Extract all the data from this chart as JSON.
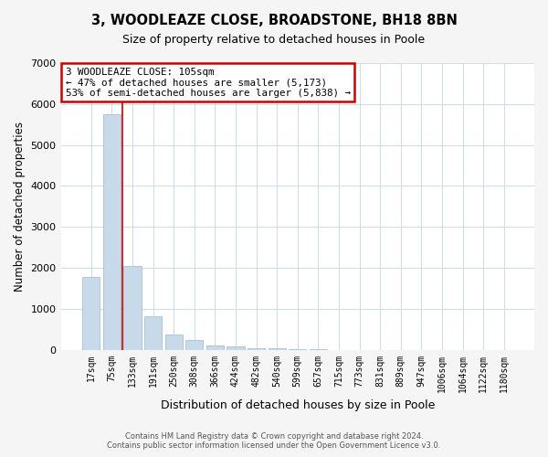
{
  "title": "3, WOODLEAZE CLOSE, BROADSTONE, BH18 8BN",
  "subtitle": "Size of property relative to detached houses in Poole",
  "xlabel": "Distribution of detached houses by size in Poole",
  "ylabel": "Number of detached properties",
  "bar_labels": [
    "17sqm",
    "75sqm",
    "133sqm",
    "191sqm",
    "250sqm",
    "308sqm",
    "366sqm",
    "424sqm",
    "482sqm",
    "540sqm",
    "599sqm",
    "657sqm",
    "715sqm",
    "773sqm",
    "831sqm",
    "889sqm",
    "947sqm",
    "1006sqm",
    "1064sqm",
    "1122sqm",
    "1180sqm"
  ],
  "bar_values": [
    1780,
    5750,
    2050,
    810,
    380,
    230,
    115,
    80,
    45,
    30,
    15,
    5,
    3,
    0,
    0,
    0,
    0,
    0,
    0,
    0,
    0
  ],
  "bar_color": "#c8daea",
  "bar_edge_color": "#9ab8cc",
  "vline_color": "#cc0000",
  "annotation_box_edge": "#cc0000",
  "annotation_line1": "3 WOODLEAZE CLOSE: 105sqm",
  "annotation_line2": "← 47% of detached houses are smaller (5,173)",
  "annotation_line3": "53% of semi-detached houses are larger (5,838) →",
  "ylim": [
    0,
    7000
  ],
  "yticks": [
    0,
    1000,
    2000,
    3000,
    4000,
    5000,
    6000,
    7000
  ],
  "footer_line1": "Contains HM Land Registry data © Crown copyright and database right 2024.",
  "footer_line2": "Contains public sector information licensed under the Open Government Licence v3.0.",
  "bg_color": "#f5f5f5",
  "plot_bg_color": "#ffffff",
  "grid_color": "#d0dce8"
}
